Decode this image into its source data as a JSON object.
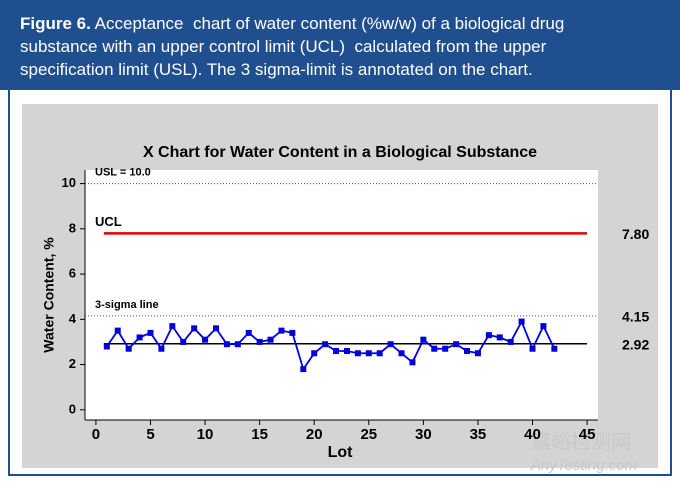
{
  "caption": {
    "label": "Figure 6.",
    "lines": [
      "Acceptance  chart of water content (%w/w) of a biological drug",
      "substance with an upper control limit (UCL)  calculated from the upper",
      "specification limit (USL). The 3 sigma-limit is annotated on the chart."
    ]
  },
  "watermark": {
    "title": "嘉峪检测网",
    "site": "AnyTesting.com"
  },
  "chart_data": {
    "type": "line",
    "title": "X Chart for Water Content in a Biological Substance",
    "x_label": "Lot",
    "y_label": "Water Content, %",
    "x": [
      1,
      2,
      3,
      4,
      5,
      6,
      7,
      8,
      9,
      10,
      11,
      12,
      13,
      14,
      15,
      16,
      17,
      18,
      19,
      20,
      21,
      22,
      23,
      24,
      25,
      26,
      27,
      28,
      29,
      30,
      31,
      32,
      33,
      34,
      35,
      36,
      37,
      38,
      39,
      40,
      41,
      42
    ],
    "series": [
      {
        "color": "#0000dd",
        "values": [
          2.8,
          3.5,
          2.7,
          3.2,
          3.4,
          2.7,
          3.7,
          3.0,
          3.6,
          3.1,
          3.6,
          2.9,
          2.9,
          3.4,
          3.0,
          3.1,
          3.5,
          3.4,
          1.8,
          2.5,
          2.9,
          2.6,
          2.6,
          2.5,
          2.5,
          2.5,
          2.9,
          2.5,
          2.1,
          3.1,
          2.7,
          2.7,
          2.9,
          2.6,
          2.5,
          3.3,
          3.2,
          3.0,
          3.9,
          2.7,
          3.7,
          2.7
        ]
      }
    ],
    "reference_lines": [
      {
        "label": "USL = 10.0",
        "value": 10,
        "style": "dotted",
        "color": "#555555"
      },
      {
        "label": "UCL",
        "value": 7.8,
        "value_label": "7.80",
        "style": "solid",
        "color": "#e00000"
      },
      {
        "label": "3-sigma line",
        "value": 4.15,
        "style": "dotted",
        "color": "#555555"
      },
      {
        "value": 2.92,
        "style": "solid",
        "color": "#000000"
      }
    ],
    "xlim": [
      -1,
      46
    ],
    "ylim": [
      -0.45,
      10.6
    ],
    "xticks": [
      0,
      5,
      10,
      15,
      20,
      25,
      30,
      35,
      40,
      45
    ],
    "yticks": [
      0,
      2,
      4,
      6,
      8,
      10
    ]
  }
}
